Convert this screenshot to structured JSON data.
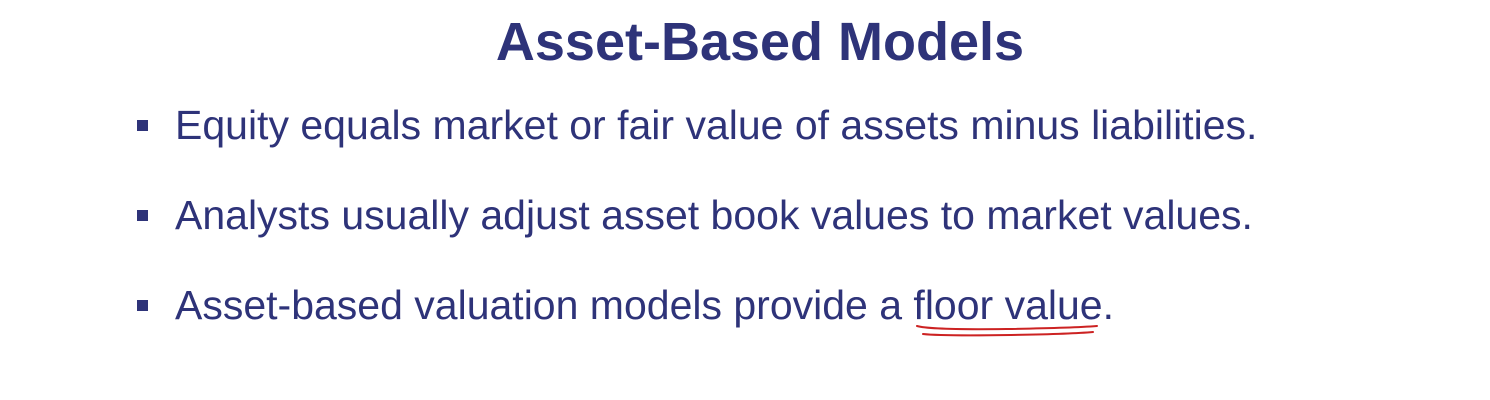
{
  "slide": {
    "title": "Asset-Based Models",
    "bullets": [
      {
        "text": "Equity equals market or fair value of assets minus liabilities."
      },
      {
        "text": "Analysts usually adjust asset book values to market values."
      },
      {
        "prefix": "Asset-based valuation models provide a ",
        "highlight": "floor value",
        "suffix": "."
      }
    ]
  },
  "colors": {
    "text": "#2e3379",
    "pen_annotation": "#cc2222",
    "background": "#ffffff"
  }
}
